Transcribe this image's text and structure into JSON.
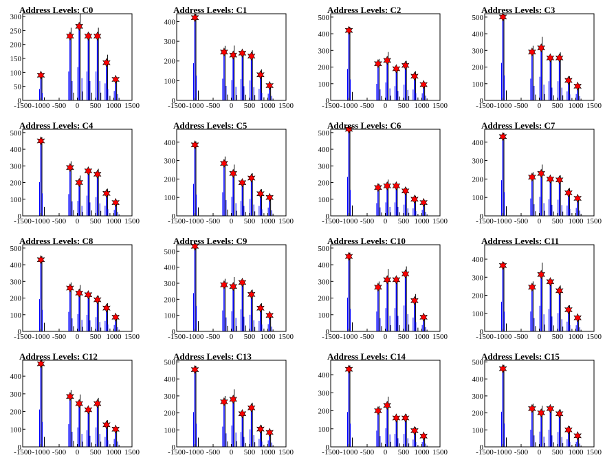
{
  "colors": {
    "histogram_blue": "#0000ff",
    "histogram_black": "#000000",
    "marker_red": "#ff0000",
    "marker_edge": "#000000"
  },
  "chart_data": [
    {
      "type": "bar",
      "title": "Address Levels: C0",
      "xlim": [
        -1500,
        1500
      ],
      "ylim": [
        0,
        310
      ],
      "xticks": [
        -1500,
        -1000,
        -500,
        0,
        500,
        1000,
        1500
      ],
      "yticks": [
        0,
        50,
        100,
        150,
        200,
        250,
        300
      ],
      "peaks": [
        {
          "x": -1000,
          "y": 90
        },
        {
          "x": -200,
          "y": 230
        },
        {
          "x": 50,
          "y": 265
        },
        {
          "x": 300,
          "y": 230
        },
        {
          "x": 550,
          "y": 230
        },
        {
          "x": 800,
          "y": 135
        },
        {
          "x": 1050,
          "y": 75
        }
      ]
    },
    {
      "type": "bar",
      "title": "Address Levels: C1",
      "xlim": [
        -1500,
        1500
      ],
      "ylim": [
        0,
        440
      ],
      "xticks": [
        -1500,
        -1000,
        -500,
        0,
        500,
        1000,
        1500
      ],
      "yticks": [
        0,
        100,
        200,
        300,
        400
      ],
      "peaks": [
        {
          "x": -1000,
          "y": 420
        },
        {
          "x": -200,
          "y": 245
        },
        {
          "x": 50,
          "y": 230
        },
        {
          "x": 300,
          "y": 240
        },
        {
          "x": 550,
          "y": 225
        },
        {
          "x": 800,
          "y": 130
        },
        {
          "x": 1050,
          "y": 75
        }
      ]
    },
    {
      "type": "bar",
      "title": "Address Levels: C2",
      "xlim": [
        -1500,
        1500
      ],
      "ylim": [
        0,
        520
      ],
      "xticks": [
        -1500,
        -1000,
        -500,
        0,
        500,
        1000,
        1500
      ],
      "yticks": [
        0,
        100,
        200,
        300,
        400,
        500
      ],
      "peaks": [
        {
          "x": -1000,
          "y": 420
        },
        {
          "x": -200,
          "y": 220
        },
        {
          "x": 50,
          "y": 240
        },
        {
          "x": 300,
          "y": 190
        },
        {
          "x": 550,
          "y": 210
        },
        {
          "x": 800,
          "y": 145
        },
        {
          "x": 1050,
          "y": 95
        }
      ]
    },
    {
      "type": "bar",
      "title": "Address Levels: C3",
      "xlim": [
        -1500,
        1500
      ],
      "ylim": [
        0,
        520
      ],
      "xticks": [
        -1500,
        -1000,
        -500,
        0,
        500,
        1000,
        1500
      ],
      "yticks": [
        0,
        100,
        200,
        300,
        400,
        500
      ],
      "peaks": [
        {
          "x": -1000,
          "y": 500
        },
        {
          "x": -200,
          "y": 290
        },
        {
          "x": 50,
          "y": 315
        },
        {
          "x": 300,
          "y": 255
        },
        {
          "x": 550,
          "y": 255
        },
        {
          "x": 800,
          "y": 120
        },
        {
          "x": 1050,
          "y": 85
        }
      ]
    },
    {
      "type": "bar",
      "title": "Address Levels: C4",
      "xlim": [
        -1500,
        1500
      ],
      "ylim": [
        0,
        520
      ],
      "xticks": [
        -1500,
        -1000,
        -500,
        0,
        500,
        1000,
        1500
      ],
      "yticks": [
        0,
        100,
        200,
        300,
        400,
        500
      ],
      "peaks": [
        {
          "x": -1000,
          "y": 450
        },
        {
          "x": -200,
          "y": 290
        },
        {
          "x": 50,
          "y": 200
        },
        {
          "x": 300,
          "y": 270
        },
        {
          "x": 550,
          "y": 250
        },
        {
          "x": 800,
          "y": 135
        },
        {
          "x": 1050,
          "y": 80
        }
      ]
    },
    {
      "type": "bar",
      "title": "Address Levels: C5",
      "xlim": [
        -1500,
        1500
      ],
      "ylim": [
        0,
        470
      ],
      "xticks": [
        -1500,
        -1000,
        -500,
        0,
        500,
        1000,
        1500
      ],
      "yticks": [
        0,
        100,
        200,
        300,
        400
      ],
      "peaks": [
        {
          "x": -1000,
          "y": 385
        },
        {
          "x": -200,
          "y": 285
        },
        {
          "x": 50,
          "y": 230
        },
        {
          "x": 300,
          "y": 180
        },
        {
          "x": 550,
          "y": 205
        },
        {
          "x": 800,
          "y": 120
        },
        {
          "x": 1050,
          "y": 100
        }
      ]
    },
    {
      "type": "bar",
      "title": "Address Levels: C6",
      "xlim": [
        -1500,
        1500
      ],
      "ylim": [
        0,
        520
      ],
      "xticks": [
        -1500,
        -1000,
        -500,
        0,
        500,
        1000,
        1500
      ],
      "yticks": [
        0,
        100,
        200,
        300,
        400,
        500
      ],
      "peaks": [
        {
          "x": -1000,
          "y": 520
        },
        {
          "x": -200,
          "y": 170
        },
        {
          "x": 50,
          "y": 180
        },
        {
          "x": 300,
          "y": 180
        },
        {
          "x": 550,
          "y": 150
        },
        {
          "x": 800,
          "y": 100
        },
        {
          "x": 1050,
          "y": 80
        }
      ]
    },
    {
      "type": "bar",
      "title": "Address Levels: C7",
      "xlim": [
        -1500,
        1500
      ],
      "ylim": [
        0,
        470
      ],
      "xticks": [
        -1500,
        -1000,
        -500,
        0,
        500,
        1000,
        1500
      ],
      "yticks": [
        0,
        100,
        200,
        300,
        400
      ],
      "peaks": [
        {
          "x": -1000,
          "y": 430
        },
        {
          "x": -200,
          "y": 210
        },
        {
          "x": 50,
          "y": 230
        },
        {
          "x": 300,
          "y": 200
        },
        {
          "x": 550,
          "y": 195
        },
        {
          "x": 800,
          "y": 125
        },
        {
          "x": 1050,
          "y": 95
        }
      ]
    },
    {
      "type": "bar",
      "title": "Address Levels: C8",
      "xlim": [
        -1500,
        1500
      ],
      "ylim": [
        0,
        520
      ],
      "xticks": [
        -1500,
        -1000,
        -500,
        0,
        500,
        1000,
        1500
      ],
      "yticks": [
        0,
        100,
        200,
        300,
        400,
        500
      ],
      "peaks": [
        {
          "x": -1000,
          "y": 430
        },
        {
          "x": -200,
          "y": 260
        },
        {
          "x": 50,
          "y": 230
        },
        {
          "x": 300,
          "y": 220
        },
        {
          "x": 550,
          "y": 190
        },
        {
          "x": 800,
          "y": 140
        },
        {
          "x": 1050,
          "y": 85
        }
      ]
    },
    {
      "type": "bar",
      "title": "Address Levels: C9",
      "xlim": [
        -1500,
        1500
      ],
      "ylim": [
        0,
        540
      ],
      "xticks": [
        -1500,
        -1000,
        -500,
        0,
        500,
        1000,
        1500
      ],
      "yticks": [
        0,
        100,
        200,
        300,
        400,
        500
      ],
      "peaks": [
        {
          "x": -1000,
          "y": 530
        },
        {
          "x": -200,
          "y": 290
        },
        {
          "x": 50,
          "y": 280
        },
        {
          "x": 300,
          "y": 305
        },
        {
          "x": 550,
          "y": 230
        },
        {
          "x": 800,
          "y": 145
        },
        {
          "x": 1050,
          "y": 100
        }
      ]
    },
    {
      "type": "bar",
      "title": "Address Levels: C10",
      "xlim": [
        -1500,
        1500
      ],
      "ylim": [
        0,
        520
      ],
      "xticks": [
        -1500,
        -1000,
        -500,
        0,
        500,
        1000,
        1500
      ],
      "yticks": [
        0,
        100,
        200,
        300,
        400,
        500
      ],
      "peaks": [
        {
          "x": -1000,
          "y": 450
        },
        {
          "x": -200,
          "y": 265
        },
        {
          "x": 50,
          "y": 310
        },
        {
          "x": 300,
          "y": 310
        },
        {
          "x": 550,
          "y": 345
        },
        {
          "x": 800,
          "y": 185
        },
        {
          "x": 1050,
          "y": 85
        }
      ]
    },
    {
      "type": "bar",
      "title": "Address Levels: C11",
      "xlim": [
        -1500,
        1500
      ],
      "ylim": [
        0,
        480
      ],
      "xticks": [
        -1500,
        -1000,
        -500,
        0,
        500,
        1000,
        1500
      ],
      "yticks": [
        0,
        100,
        200,
        300,
        400
      ],
      "peaks": [
        {
          "x": -1000,
          "y": 365
        },
        {
          "x": -200,
          "y": 245
        },
        {
          "x": 50,
          "y": 315
        },
        {
          "x": 300,
          "y": 275
        },
        {
          "x": 550,
          "y": 225
        },
        {
          "x": 800,
          "y": 120
        },
        {
          "x": 1050,
          "y": 75
        }
      ]
    },
    {
      "type": "bar",
      "title": "Address Levels: C12",
      "xlim": [
        -1500,
        1500
      ],
      "ylim": [
        0,
        490
      ],
      "xticks": [
        -1500,
        -1000,
        -500,
        0,
        500,
        1000,
        1500
      ],
      "yticks": [
        0,
        100,
        200,
        300,
        400
      ],
      "peaks": [
        {
          "x": -1000,
          "y": 470
        },
        {
          "x": -200,
          "y": 285
        },
        {
          "x": 50,
          "y": 245
        },
        {
          "x": 300,
          "y": 210
        },
        {
          "x": 550,
          "y": 245
        },
        {
          "x": 800,
          "y": 125
        },
        {
          "x": 1050,
          "y": 100
        }
      ]
    },
    {
      "type": "bar",
      "title": "Address Levels: C13",
      "xlim": [
        -1500,
        1500
      ],
      "ylim": [
        0,
        510
      ],
      "xticks": [
        -1500,
        -1000,
        -500,
        0,
        500,
        1000,
        1500
      ],
      "yticks": [
        0,
        100,
        200,
        300,
        400,
        500
      ],
      "peaks": [
        {
          "x": -1000,
          "y": 455
        },
        {
          "x": -200,
          "y": 265
        },
        {
          "x": 50,
          "y": 280
        },
        {
          "x": 300,
          "y": 195
        },
        {
          "x": 550,
          "y": 230
        },
        {
          "x": 800,
          "y": 105
        },
        {
          "x": 1050,
          "y": 85
        }
      ]
    },
    {
      "type": "bar",
      "title": "Address Levels: C14",
      "xlim": [
        -1500,
        1500
      ],
      "ylim": [
        0,
        480
      ],
      "xticks": [
        -1500,
        -1000,
        -500,
        0,
        500,
        1000,
        1500
      ],
      "yticks": [
        0,
        100,
        200,
        300,
        400
      ],
      "peaks": [
        {
          "x": -1000,
          "y": 430
        },
        {
          "x": -200,
          "y": 200
        },
        {
          "x": 50,
          "y": 230
        },
        {
          "x": 300,
          "y": 160
        },
        {
          "x": 550,
          "y": 160
        },
        {
          "x": 800,
          "y": 90
        },
        {
          "x": 1050,
          "y": 60
        }
      ]
    },
    {
      "type": "bar",
      "title": "Address Levels: C15",
      "xlim": [
        -1500,
        1500
      ],
      "ylim": [
        0,
        510
      ],
      "xticks": [
        -1500,
        -1000,
        -500,
        0,
        500,
        1000,
        1500
      ],
      "yticks": [
        0,
        100,
        200,
        300,
        400,
        500
      ],
      "peaks": [
        {
          "x": -1000,
          "y": 460
        },
        {
          "x": -200,
          "y": 225
        },
        {
          "x": 50,
          "y": 200
        },
        {
          "x": 300,
          "y": 225
        },
        {
          "x": 550,
          "y": 195
        },
        {
          "x": 800,
          "y": 100
        },
        {
          "x": 1050,
          "y": 65
        }
      ]
    }
  ]
}
